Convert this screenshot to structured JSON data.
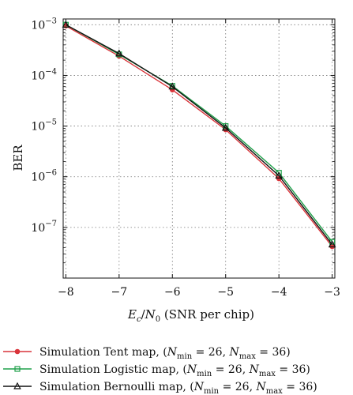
{
  "chart_data": {
    "type": "line",
    "xlabel": "E_c/N_0 (SNR per chip)",
    "xlabel_parts": {
      "e": "E",
      "c": "c",
      "slash": "/",
      "n": "N",
      "zero": "0",
      "rest": " (SNR per chip)"
    },
    "ylabel": "BER",
    "x": [
      -8,
      -7,
      -6,
      -5,
      -4,
      -3
    ],
    "x_tick_labels": [
      "−8",
      "−7",
      "−6",
      "−5",
      "−4",
      "−3"
    ],
    "xlim": [
      -8.05,
      -2.95
    ],
    "y_scale": "log",
    "ylim": [
      1e-08,
      0.0013
    ],
    "y_ticks": [
      {
        "value": 0.001,
        "base": "10",
        "exp": "−3"
      },
      {
        "value": 0.0001,
        "base": "10",
        "exp": "−4"
      },
      {
        "value": 1e-05,
        "base": "10",
        "exp": "−5"
      },
      {
        "value": 1e-06,
        "base": "10",
        "exp": "−6"
      },
      {
        "value": 1e-07,
        "base": "10",
        "exp": "−7"
      }
    ],
    "grid": true,
    "legend_position": "below",
    "series": [
      {
        "name": "Simulation Tent map, (N_min = 26, N_max = 36)",
        "label_start": "Simulation Tent map, (",
        "color": "#d9343a",
        "marker": "circle",
        "values": [
          0.00095,
          0.00024,
          5.2e-05,
          8.5e-06,
          9.2e-07,
          4.2e-08
        ]
      },
      {
        "name": "Simulation Logistic map, (N_min = 26, N_max = 36)",
        "label_start": "Simulation Logistic map, (",
        "color": "#1fa04a",
        "marker": "square",
        "values": [
          0.001,
          0.00026,
          6.2e-05,
          1e-05,
          1.2e-06,
          5.2e-08
        ]
      },
      {
        "name": "Simulation Bernoulli map, (N_min = 26, N_max = 36)",
        "label_start": "Simulation Bernoulli map, (",
        "color": "#111111",
        "marker": "triangle",
        "values": [
          0.001,
          0.00027,
          6e-05,
          9.2e-06,
          1.05e-06,
          4.6e-08
        ]
      }
    ],
    "legend_params": {
      "n": "N",
      "min": "min",
      "eq1": " = 26, ",
      "max": "max",
      "eq2": " = 36)"
    }
  }
}
